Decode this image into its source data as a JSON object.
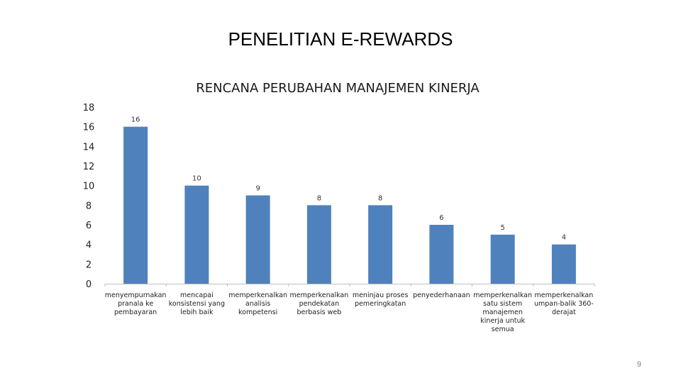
{
  "slide": {
    "title": "PENELITIAN E-REWARDS",
    "page_number": "9"
  },
  "colors": {
    "bar": "#4f81bd",
    "axis": "#bfbfbf",
    "text": "#222222"
  },
  "chart_data": {
    "type": "bar",
    "title": "RENCANA PERUBAHAN MANAJEMEN KINERJA",
    "xlabel": "",
    "ylabel": "",
    "ylim": [
      0,
      18
    ],
    "yticks": [
      "0",
      "2",
      "4",
      "6",
      "8",
      "10",
      "12",
      "14",
      "16",
      "18"
    ],
    "grid": false,
    "legend": "none",
    "categories": [
      [
        "menyempurnakan",
        "pranala ke",
        "pembayaran"
      ],
      [
        "mencapai",
        "konsistensi yang",
        "lebih baik"
      ],
      [
        "memperkenalkan",
        "analisis",
        "kompetensi"
      ],
      [
        "memperkenalkan",
        "pendekatan",
        "berbasis web"
      ],
      [
        "meninjau proses",
        "pemeringkatan"
      ],
      [
        "penyederhanaan"
      ],
      [
        "memperkenalkan",
        "satu sistem",
        "manajemen",
        "kinerja untuk",
        "semua"
      ],
      [
        "memperkenalkan",
        "umpan-balik 360-",
        "derajat"
      ]
    ],
    "values": [
      16,
      10,
      9,
      8,
      8,
      6,
      5,
      4
    ],
    "data_labels": [
      "16",
      "10",
      "9",
      "8",
      "8",
      "6",
      "5",
      "4"
    ]
  }
}
